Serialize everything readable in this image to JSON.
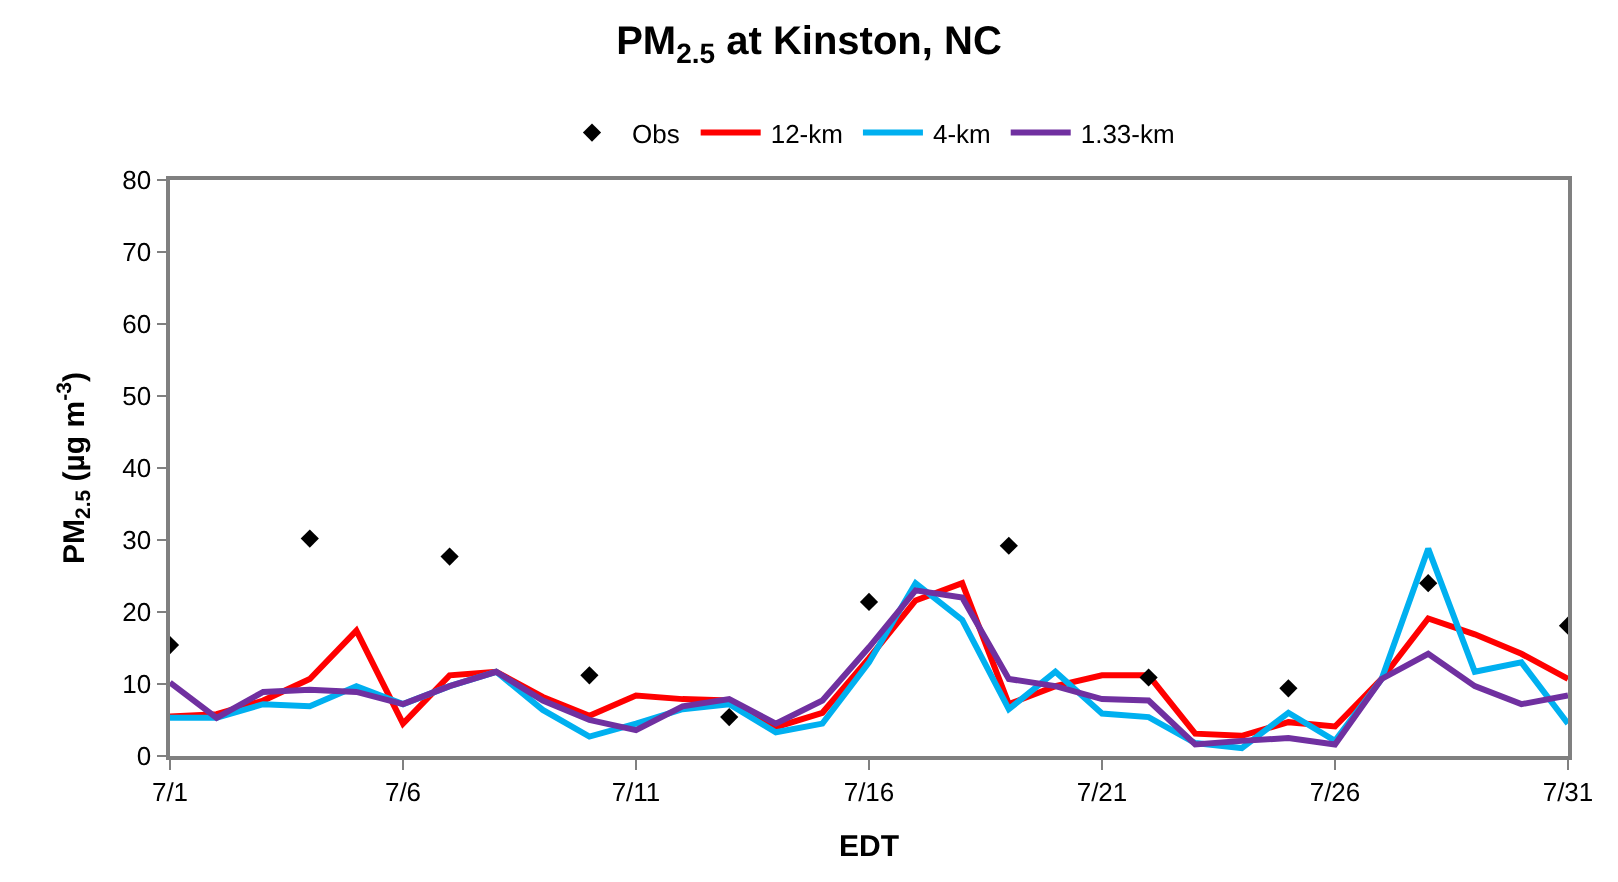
{
  "chart_data": {
    "type": "line",
    "title": "PM$_{2.5}$ at Kinston, NC",
    "xlabel": "EDT",
    "ylabel": "PM$_{2.5}$ (µg m$^{-3}$)",
    "x": [
      "--07-01",
      "--07-02",
      "--07-03",
      "--07-04",
      "--07-05",
      "--07-06",
      "--07-07",
      "--07-08",
      "--07-09",
      "--07-10",
      "--07-11",
      "--07-12",
      "--07-13",
      "--07-14",
      "--07-15",
      "--07-16",
      "--07-17",
      "--07-18",
      "--07-19",
      "--07-20",
      "--07-21",
      "--07-22",
      "--07-23",
      "--07-24",
      "--07-25",
      "--07-26",
      "--07-27",
      "--07-28",
      "--07-29",
      "--07-30",
      "--07-31"
    ],
    "series": [
      {
        "name": "Obs",
        "type": "scatter",
        "marker": "diamond",
        "color": "#000000",
        "x": [
          "--07-01",
          "--07-04",
          "--07-07",
          "--07-10",
          "--07-13",
          "--07-16",
          "--07-19",
          "--07-22",
          "--07-25",
          "--07-28",
          "--07-31"
        ],
        "values": [
          15.4,
          30.2,
          27.7,
          11.2,
          5.4,
          21.4,
          29.2,
          10.9,
          9.4,
          24,
          18.1
        ]
      },
      {
        "name": "12-km",
        "color": "#ff0000",
        "values": [
          5.5,
          5.8,
          7.7,
          10.7,
          17.4,
          4.5,
          11.2,
          11.7,
          8.2,
          5.6,
          8.4,
          7.9,
          7.7,
          4,
          6,
          13.6,
          21.6,
          24,
          7.2,
          9.7,
          11.2,
          11.2,
          3.1,
          2.8,
          4.7,
          4.1,
          10.7,
          19.1,
          16.9,
          14.2,
          10.7
        ]
      },
      {
        "name": "4-km",
        "color": "#00b0f0",
        "values": [
          5.3,
          5.3,
          7.2,
          6.9,
          9.7,
          7.2,
          9.7,
          11.7,
          6.4,
          2.7,
          4.5,
          6.5,
          7.2,
          3.3,
          4.5,
          13,
          24,
          18.9,
          6.5,
          11.7,
          5.9,
          5.4,
          1.8,
          1.1,
          6,
          2.1,
          10.7,
          28.8,
          11.7,
          13,
          4.5
        ]
      },
      {
        "name": "1.33-km",
        "color": "#7030a0",
        "values": [
          10.2,
          5.3,
          8.9,
          9.2,
          8.9,
          7.2,
          9.7,
          11.7,
          7.7,
          5,
          3.6,
          6.9,
          7.9,
          4.5,
          7.7,
          15.1,
          23,
          22,
          10.7,
          9.7,
          7.9,
          7.7,
          1.6,
          2.1,
          2.5,
          1.6,
          10.7,
          14.2,
          9.7,
          7.2,
          8.4
        ]
      }
    ],
    "xlim": [
      "--07-01",
      "--07-31"
    ],
    "xticks": [
      {
        "value": "--07-01",
        "label": "7/1"
      },
      {
        "value": "--07-06",
        "label": "7/6"
      },
      {
        "value": "--07-11",
        "label": "7/11"
      },
      {
        "value": "--07-16",
        "label": "7/16"
      },
      {
        "value": "--07-21",
        "label": "7/21"
      },
      {
        "value": "--07-26",
        "label": "7/26"
      },
      {
        "value": "--07-31",
        "label": "7/31"
      }
    ],
    "ylim": [
      0,
      80
    ],
    "yticks": [
      0,
      10,
      20,
      30,
      40,
      50,
      60,
      70,
      80
    ],
    "legend": "top",
    "marker": "none",
    "line_style": "solid"
  }
}
